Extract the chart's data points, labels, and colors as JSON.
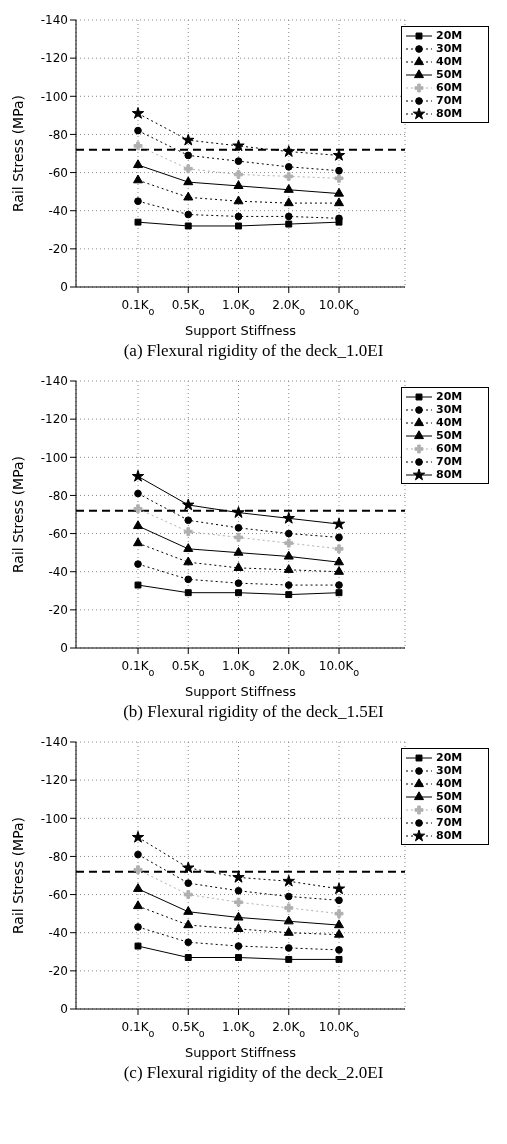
{
  "chart_data": [
    {
      "type": "line",
      "title": "(a) Flexural rigidity of the deck_1.0EI",
      "xlabel": "Support Stiffness",
      "ylabel": "Rail Stress (MPa)",
      "categories": [
        "0.1K$_{o}$",
        "0.5K$_{o}$",
        "1.0K$_{o}$",
        "2.0K$_{o}$",
        "10.0K$_{o}$"
      ],
      "ylim": [
        0,
        -140
      ],
      "yticks": [
        0,
        -20,
        -40,
        -60,
        -80,
        -100,
        -120,
        -140
      ],
      "grid": true,
      "legend": "top right",
      "ref_lines": [
        {
          "axis": "y",
          "value": -72,
          "color": "#000000",
          "line_style": "dashed"
        }
      ],
      "series": [
        {
          "name": "20M",
          "color": "#000000",
          "marker": "square",
          "line_style": "solid",
          "values": [
            -34,
            -32,
            -32,
            -33,
            -34
          ]
        },
        {
          "name": "30M",
          "color": "#000000",
          "marker": "circle",
          "line_style": "dotted",
          "values": [
            -45,
            -38,
            -37,
            -37,
            -36
          ]
        },
        {
          "name": "40M",
          "color": "#000000",
          "marker": "triangle",
          "line_style": "dotted",
          "values": [
            -56,
            -47,
            -45,
            -44,
            -44
          ]
        },
        {
          "name": "50M",
          "color": "#000000",
          "marker": "triangle",
          "line_style": "solid",
          "values": [
            -64,
            -55,
            -53,
            -51,
            -49
          ]
        },
        {
          "name": "60M",
          "color": "#b0b0b0",
          "marker": "cross",
          "line_style": "dotted",
          "values": [
            -74,
            -62,
            -59,
            -58,
            -57
          ]
        },
        {
          "name": "70M",
          "color": "#000000",
          "marker": "circle",
          "line_style": "dotted",
          "values": [
            -82,
            -69,
            -66,
            -63,
            -61
          ]
        },
        {
          "name": "80M",
          "color": "#000000",
          "marker": "star",
          "line_style": "dotted",
          "values": [
            -91,
            -77,
            -74,
            -71,
            -69
          ]
        }
      ]
    },
    {
      "type": "line",
      "title": "(b) Flexural rigidity of the deck_1.5EI",
      "xlabel": "Support Stiffness",
      "ylabel": "Rail Stress (MPa)",
      "categories": [
        "0.1K$_{o}$",
        "0.5K$_{o}$",
        "1.0K$_{o}$",
        "2.0K$_{o}$",
        "10.0K$_{o}$"
      ],
      "ylim": [
        0,
        -140
      ],
      "yticks": [
        0,
        -20,
        -40,
        -60,
        -80,
        -100,
        -120,
        -140
      ],
      "grid": true,
      "legend": "top right",
      "ref_lines": [
        {
          "axis": "y",
          "value": -72,
          "color": "#000000",
          "line_style": "dashed"
        }
      ],
      "series": [
        {
          "name": "20M",
          "color": "#000000",
          "marker": "square",
          "line_style": "solid",
          "values": [
            -33,
            -29,
            -29,
            -28,
            -29
          ]
        },
        {
          "name": "30M",
          "color": "#000000",
          "marker": "circle",
          "line_style": "dotted",
          "values": [
            -44,
            -36,
            -34,
            -33,
            -33
          ]
        },
        {
          "name": "40M",
          "color": "#000000",
          "marker": "triangle",
          "line_style": "dotted",
          "values": [
            -55,
            -45,
            -42,
            -41,
            -40
          ]
        },
        {
          "name": "50M",
          "color": "#000000",
          "marker": "triangle",
          "line_style": "solid",
          "values": [
            -64,
            -52,
            -50,
            -48,
            -45
          ]
        },
        {
          "name": "60M",
          "color": "#b0b0b0",
          "marker": "cross",
          "line_style": "dotted",
          "values": [
            -73,
            -61,
            -58,
            -55,
            -52
          ]
        },
        {
          "name": "70M",
          "color": "#000000",
          "marker": "circle",
          "line_style": "dotted",
          "values": [
            -81,
            -67,
            -63,
            -60,
            -58
          ]
        },
        {
          "name": "80M",
          "color": "#000000",
          "marker": "star",
          "line_style": "solid",
          "values": [
            -90,
            -75,
            -71,
            -68,
            -65
          ]
        }
      ]
    },
    {
      "type": "line",
      "title": "(c) Flexural rigidity of the deck_2.0EI",
      "xlabel": "Support Stiffness",
      "ylabel": "Rail Stress (MPa)",
      "categories": [
        "0.1K$_{o}$",
        "0.5K$_{o}$",
        "1.0K$_{o}$",
        "2.0K$_{o}$",
        "10.0K$_{o}$"
      ],
      "ylim": [
        0,
        -140
      ],
      "yticks": [
        0,
        -20,
        -40,
        -60,
        -80,
        -100,
        -120,
        -140
      ],
      "grid": true,
      "legend": "top right",
      "ref_lines": [
        {
          "axis": "y",
          "value": -72,
          "color": "#000000",
          "line_style": "dashed"
        }
      ],
      "series": [
        {
          "name": "20M",
          "color": "#000000",
          "marker": "square",
          "line_style": "solid",
          "values": [
            -33,
            -27,
            -27,
            -26,
            -26
          ]
        },
        {
          "name": "30M",
          "color": "#000000",
          "marker": "circle",
          "line_style": "dotted",
          "values": [
            -43,
            -35,
            -33,
            -32,
            -31
          ]
        },
        {
          "name": "40M",
          "color": "#000000",
          "marker": "triangle",
          "line_style": "dotted",
          "values": [
            -54,
            -44,
            -42,
            -40,
            -39
          ]
        },
        {
          "name": "50M",
          "color": "#000000",
          "marker": "triangle",
          "line_style": "solid",
          "values": [
            -63,
            -51,
            -48,
            -46,
            -44
          ]
        },
        {
          "name": "60M",
          "color": "#b0b0b0",
          "marker": "cross",
          "line_style": "dotted",
          "values": [
            -73,
            -60,
            -56,
            -53,
            -50
          ]
        },
        {
          "name": "70M",
          "color": "#000000",
          "marker": "circle",
          "line_style": "dotted",
          "values": [
            -81,
            -66,
            -62,
            -59,
            -57
          ]
        },
        {
          "name": "80M",
          "color": "#000000",
          "marker": "star",
          "line_style": "dotted",
          "values": [
            -90,
            -74,
            -69,
            -67,
            -63
          ]
        }
      ]
    }
  ]
}
